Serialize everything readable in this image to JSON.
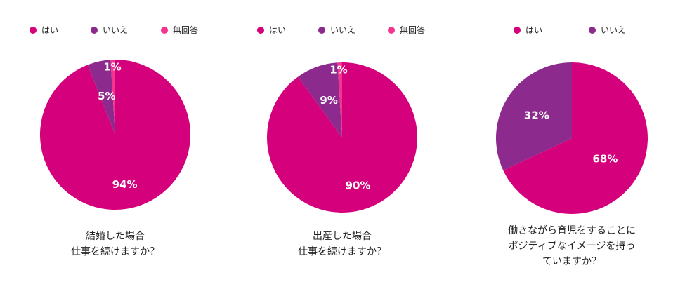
{
  "colors": {
    "yes": "#d5007b",
    "no": "#8c2a8e",
    "no_answer": "#f2368f"
  },
  "chart_data": [
    {
      "type": "pie",
      "legend": [
        "はい",
        "いいえ",
        "無回答"
      ],
      "categories": [
        "はい",
        "いいえ",
        "無回答"
      ],
      "values": [
        94,
        5,
        1
      ],
      "labels": [
        "94%",
        "5%",
        "1%"
      ],
      "title": [
        "結婚した場合",
        "仕事を続けますか？"
      ]
    },
    {
      "type": "pie",
      "legend": [
        "はい",
        "いいえ",
        "無回答"
      ],
      "categories": [
        "はい",
        "いいえ",
        "無回答"
      ],
      "values": [
        90,
        9,
        1
      ],
      "labels": [
        "90%",
        "9%",
        "1%"
      ],
      "title": [
        "出産した場合",
        "仕事を続けますか？"
      ]
    },
    {
      "type": "pie",
      "legend": [
        "はい",
        "いいえ"
      ],
      "categories": [
        "はい",
        "いいえ"
      ],
      "values": [
        68,
        32
      ],
      "labels": [
        "68%",
        "32%"
      ],
      "title": [
        "働きながら育児をすることに",
        "ポジティブなイメージを持っ",
        "ていますか？"
      ]
    }
  ]
}
